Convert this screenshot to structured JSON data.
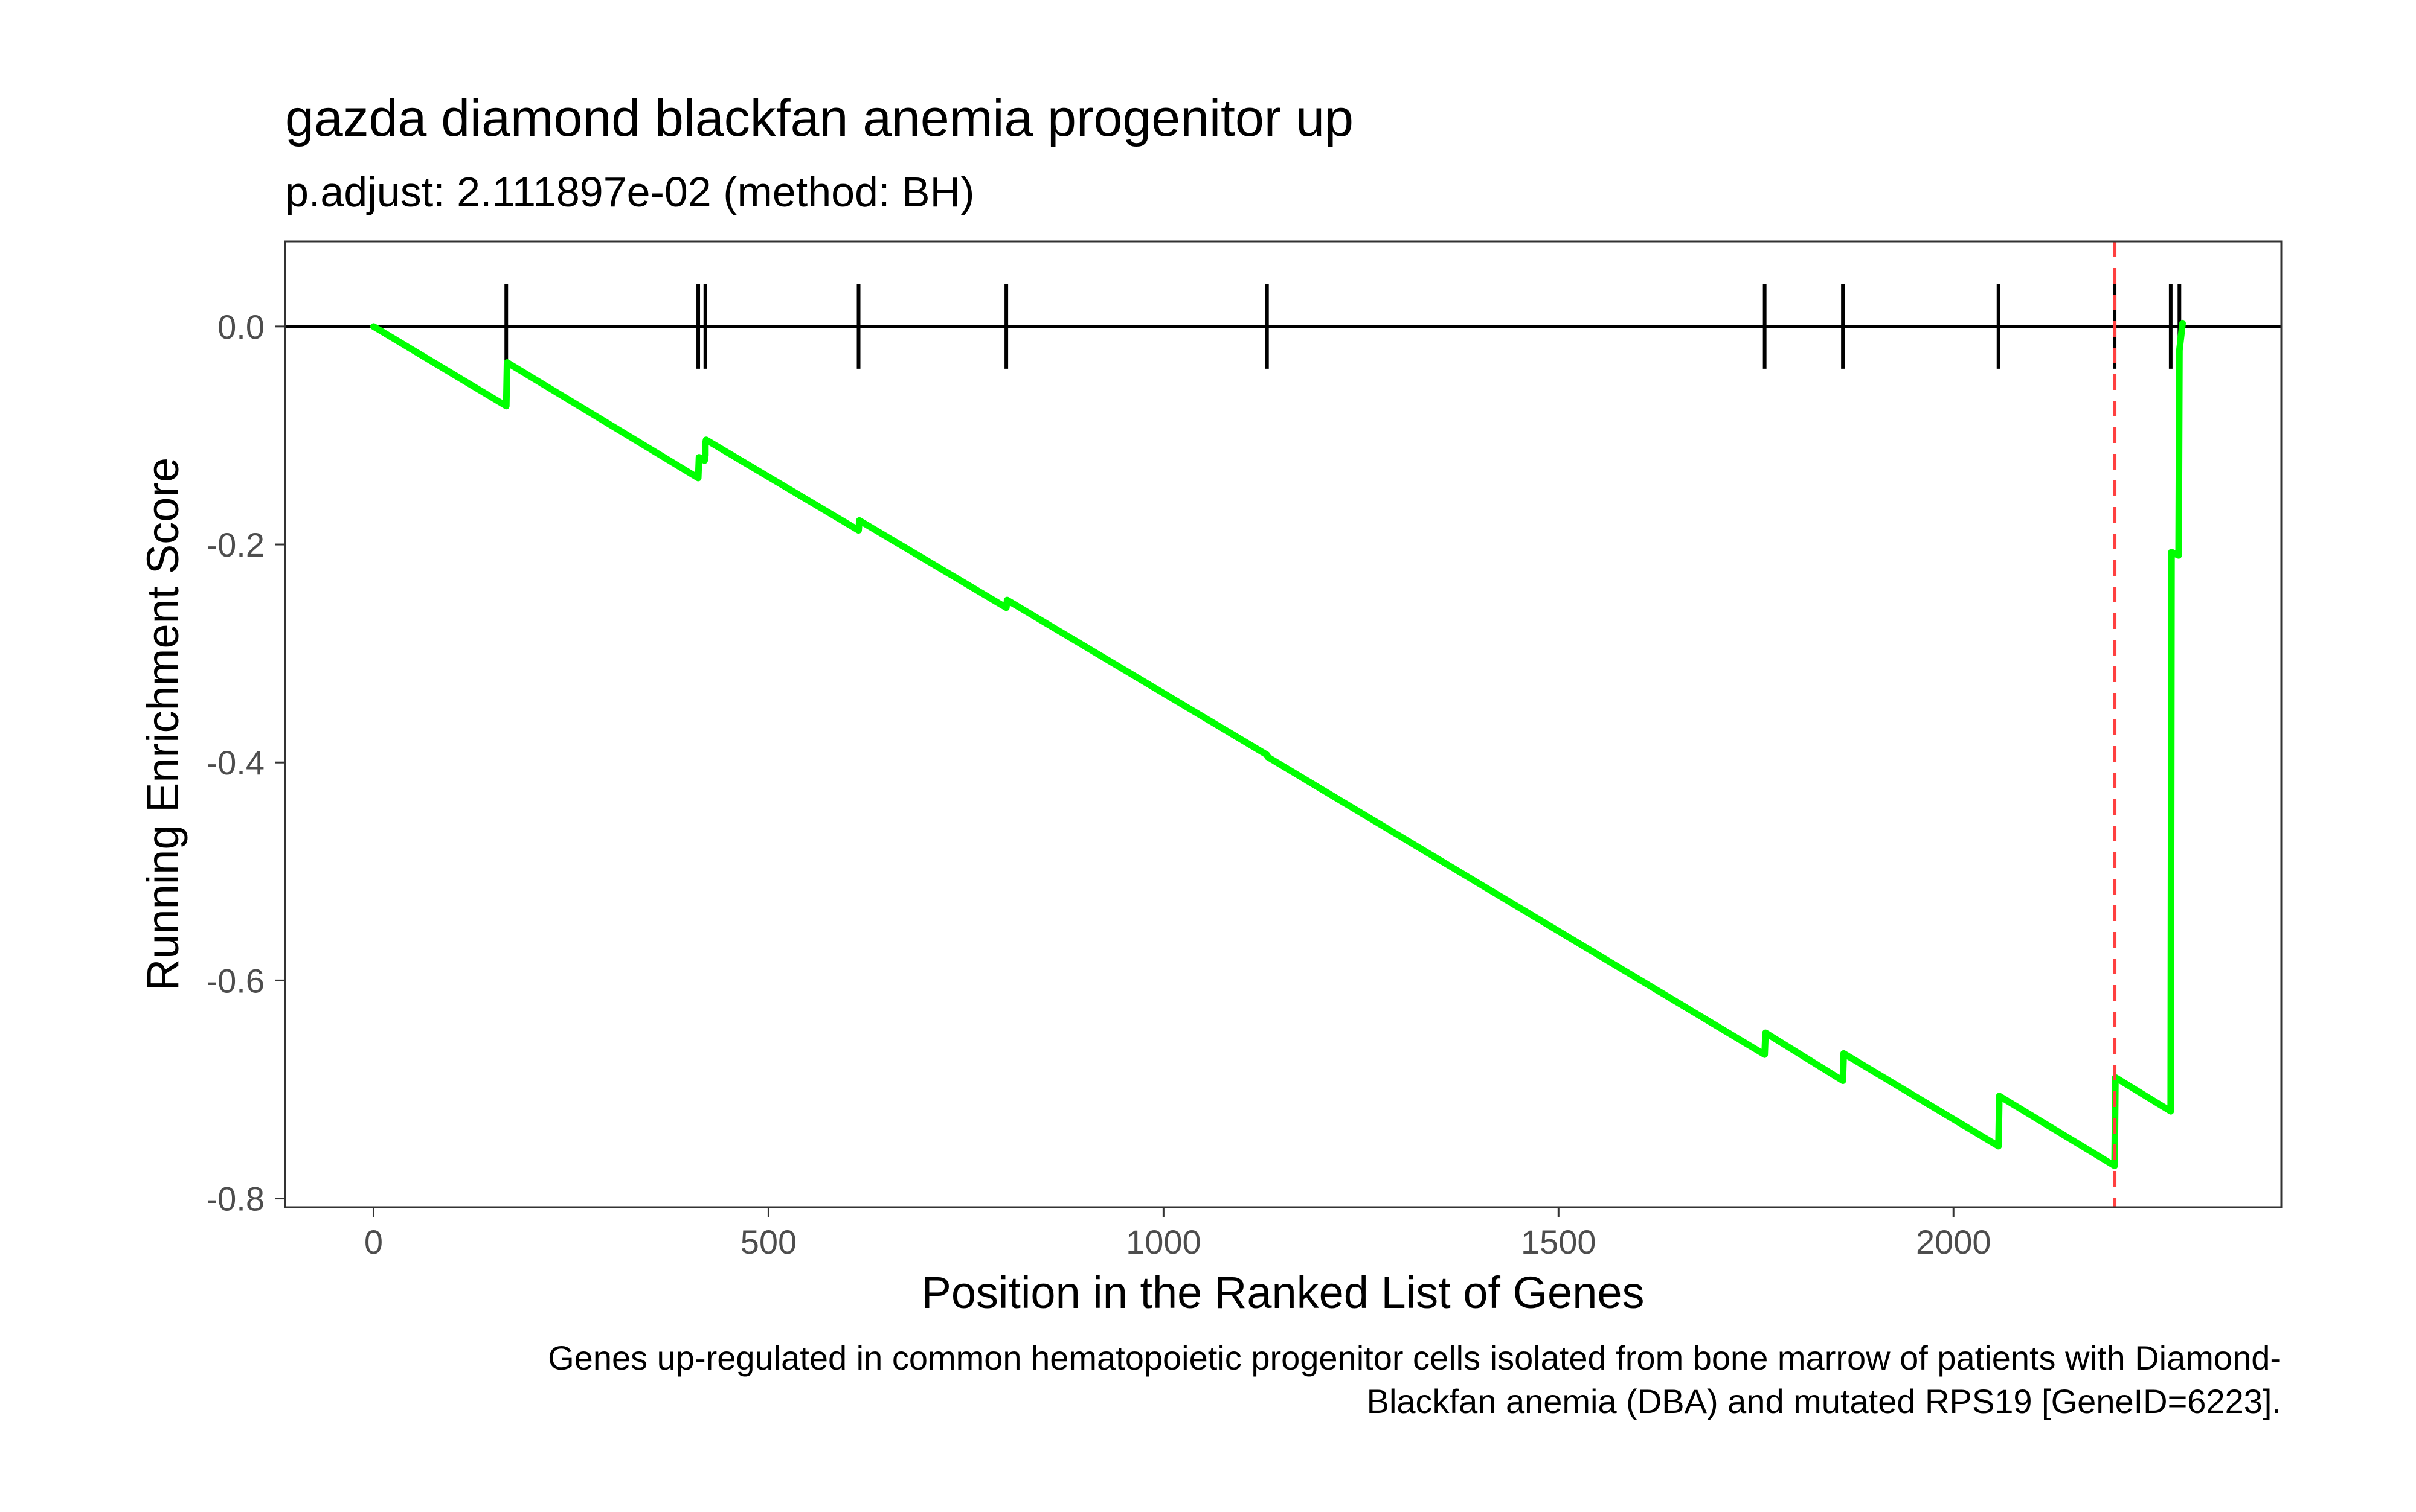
{
  "chart_data": {
    "type": "line",
    "title": "gazda diamond blackfan anemia progenitor up",
    "subtitle": "p.adjust: 2.111897e-02 (method: BH)",
    "xlabel": "Position in the Ranked List of Genes",
    "ylabel": "Running Enrichment Score",
    "caption": [
      "Genes up-regulated in common hematopoietic progenitor cells isolated from bone marrow of patients with Diamond-",
      "Blackfan anemia (DBA) and mutated RPS19 [GeneID=6223]."
    ],
    "xlim": [
      -112,
      2415
    ],
    "ylim": [
      -0.808,
      0.078
    ],
    "x_ticks": [
      0,
      500,
      1000,
      1500,
      2000
    ],
    "x_tick_labels": [
      "0",
      "500",
      "1000",
      "1500",
      "2000"
    ],
    "y_ticks": [
      0.0,
      -0.2,
      -0.4,
      -0.6,
      -0.8
    ],
    "y_tick_labels": [
      "0.0",
      "-0.2",
      "-0.4",
      "-0.6",
      "-0.8"
    ],
    "grid": false,
    "series": [
      {
        "color": "#00ff00",
        "x": [
          0,
          168,
          169,
          411,
          412,
          419,
          420,
          420,
          421,
          614,
          615,
          801,
          802,
          1131,
          1132,
          1761,
          1762,
          1860,
          1861,
          2057,
          2058,
          2204,
          2205,
          2275,
          2276,
          2285,
          2286,
          2290
        ],
        "y": [
          0.0,
          -0.073,
          -0.033,
          -0.139,
          -0.12,
          -0.123,
          -0.118,
          -0.107,
          -0.104,
          -0.187,
          -0.178,
          -0.258,
          -0.251,
          -0.393,
          -0.395,
          -0.668,
          -0.648,
          -0.692,
          -0.667,
          -0.752,
          -0.706,
          -0.77,
          -0.689,
          -0.72,
          -0.207,
          -0.21,
          -0.022,
          0.003
        ]
      }
    ],
    "hit_positions": [
      168,
      411,
      420,
      614,
      801,
      1131,
      1761,
      1860,
      2057,
      2204,
      2275,
      2286
    ],
    "zero_line": 0.0,
    "peak_marker": {
      "x": 2204,
      "color": "#ff4040"
    },
    "colors": {
      "line": "#00ff00",
      "hits": "#000000",
      "peak": "#ff4040",
      "frame": "#333333"
    }
  }
}
